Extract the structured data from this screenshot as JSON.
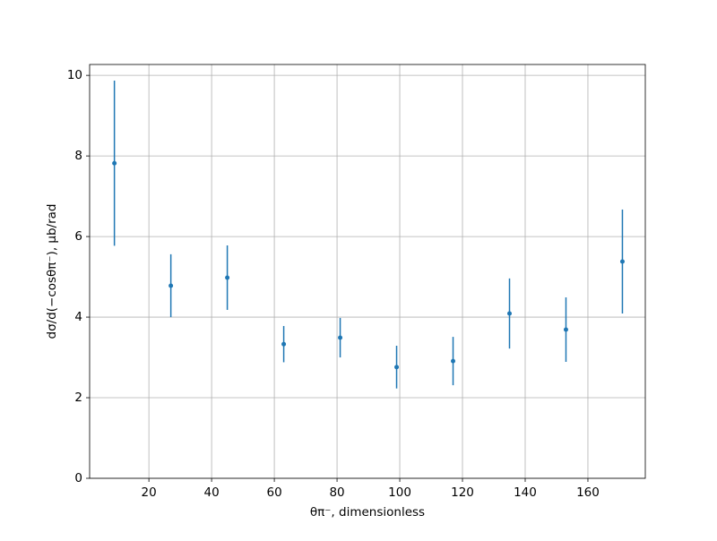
{
  "chart_data": {
    "type": "errorbar",
    "xlabel": "θπ⁻, dimensionless",
    "ylabel": "dσ/d(−cosθπ⁻), μb/rad",
    "x": [
      9,
      27,
      45,
      63,
      81,
      99,
      117,
      135,
      153,
      171
    ],
    "series": [
      {
        "color": "#1f77b4",
        "values": [
          7.82,
          4.78,
          4.98,
          3.33,
          3.49,
          2.76,
          2.91,
          4.09,
          3.69,
          5.38
        ],
        "errors": [
          2.05,
          0.78,
          0.8,
          0.45,
          0.49,
          0.53,
          0.6,
          0.87,
          0.8,
          1.29
        ]
      }
    ],
    "xlim": [
      1.1,
      178.3
    ],
    "ylim": [
      0,
      10.27
    ],
    "xticks": [
      20,
      40,
      60,
      80,
      100,
      120,
      140,
      160
    ],
    "yticks": [
      0,
      2,
      4,
      6,
      8,
      10
    ],
    "grid": true
  }
}
